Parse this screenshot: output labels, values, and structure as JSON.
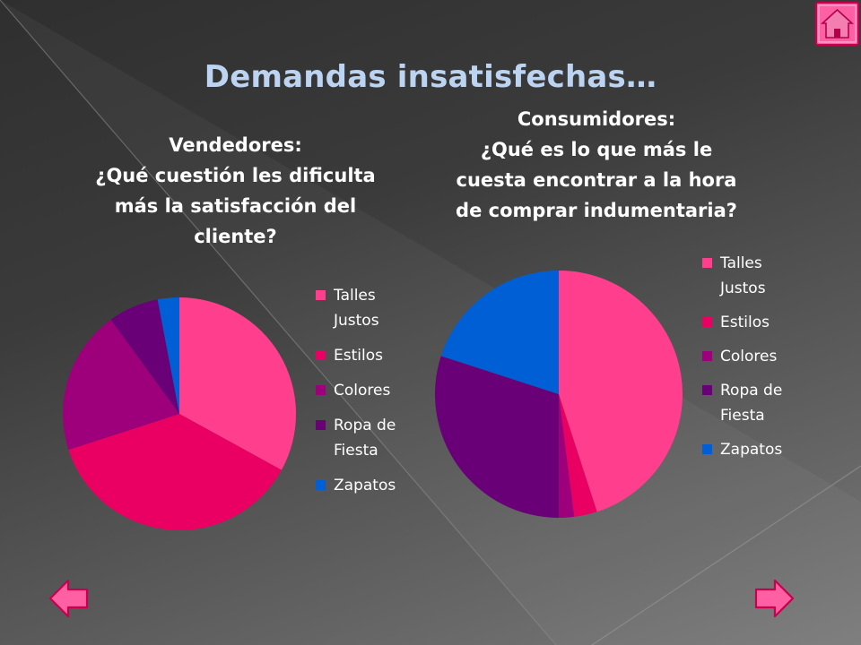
{
  "slide": {
    "title": "Demandas insatisfechas…"
  },
  "colors": {
    "talles_justos": "#ff3f8e",
    "estilos": "#ea0062",
    "colores": "#9e007c",
    "ropa_de_fiesta": "#690078",
    "zapatos": "#005fd4",
    "title": "#bcd4f2",
    "button_fill": "#ff5fa3",
    "button_stroke": "#c8004f"
  },
  "chart_data": [
    {
      "type": "pie",
      "title_lines": [
        "Vendedores:",
        "¿Qué cuestión les dificulta",
        "más la satisfacción del",
        "cliente?"
      ],
      "categories": [
        "Talles Justos",
        "Estilos",
        "Colores",
        "Ropa de Fiesta",
        "Zapatos"
      ],
      "legend_lines": [
        [
          "Talles",
          "Justos"
        ],
        [
          "Estilos"
        ],
        [
          "Colores"
        ],
        [
          "Ropa de",
          "Fiesta"
        ],
        [
          "Zapatos"
        ]
      ],
      "values": [
        33,
        37,
        20,
        7,
        3
      ],
      "start_angle_deg": 0,
      "direction": "clockwise",
      "legend_position": "right"
    },
    {
      "type": "pie",
      "title_lines": [
        "Consumidores:",
        "¿Qué  es lo que más le",
        "cuesta encontrar a la hora",
        "de comprar indumentaria?"
      ],
      "categories": [
        "Talles Justos",
        "Estilos",
        "Colores",
        "Ropa de Fiesta",
        "Zapatos"
      ],
      "legend_lines": [
        [
          "Talles",
          "Justos"
        ],
        [
          "Estilos"
        ],
        [
          "Colores"
        ],
        [
          "Ropa de",
          "Fiesta"
        ],
        [
          "Zapatos"
        ]
      ],
      "values": [
        45,
        3,
        2,
        30,
        20
      ],
      "start_angle_deg": 0,
      "direction": "clockwise",
      "legend_position": "right"
    }
  ],
  "icons": {
    "home": "home-icon",
    "previous": "arrow-left-icon",
    "next": "arrow-right-icon"
  }
}
